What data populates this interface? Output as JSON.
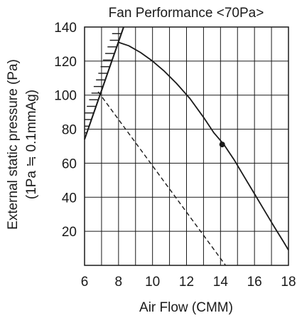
{
  "chart_data": {
    "type": "line",
    "title": "Fan Performance <70Pa>",
    "xlabel": "Air Flow (CMM)",
    "ylabel": "External static pressure (Pa)",
    "ylabel2": "(1Pa ≒ 0.1mmAg)",
    "xlim": [
      6,
      18
    ],
    "ylim": [
      0,
      140
    ],
    "xticks": [
      "6",
      "8",
      "10",
      "12",
      "14",
      "16",
      "18"
    ],
    "yticks": [
      "20",
      "40",
      "60",
      "80",
      "100",
      "120",
      "140"
    ],
    "grid": true,
    "series": [
      {
        "style": "solid",
        "points": [
          [
            8.0,
            131
          ],
          [
            8.6,
            129
          ],
          [
            9.3,
            125
          ],
          [
            10.0,
            120
          ],
          [
            10.7,
            114
          ],
          [
            11.4,
            107
          ],
          [
            12.2,
            98
          ],
          [
            13.0,
            87
          ],
          [
            13.6,
            78
          ],
          [
            14.2,
            71
          ],
          [
            14.8,
            62
          ],
          [
            15.4,
            52
          ],
          [
            16.0,
            42
          ],
          [
            16.6,
            32
          ],
          [
            17.2,
            22
          ],
          [
            17.7,
            14
          ],
          [
            18.0,
            9
          ]
        ]
      },
      {
        "style": "dashed",
        "points": [
          [
            6.8,
            102
          ],
          [
            14.3,
            0
          ]
        ]
      }
    ],
    "markers": [
      [
        14.1,
        71
      ]
    ],
    "boundary": {
      "style": "hatched",
      "points": [
        [
          6.0,
          74
        ],
        [
          8.3,
          140
        ]
      ]
    }
  }
}
